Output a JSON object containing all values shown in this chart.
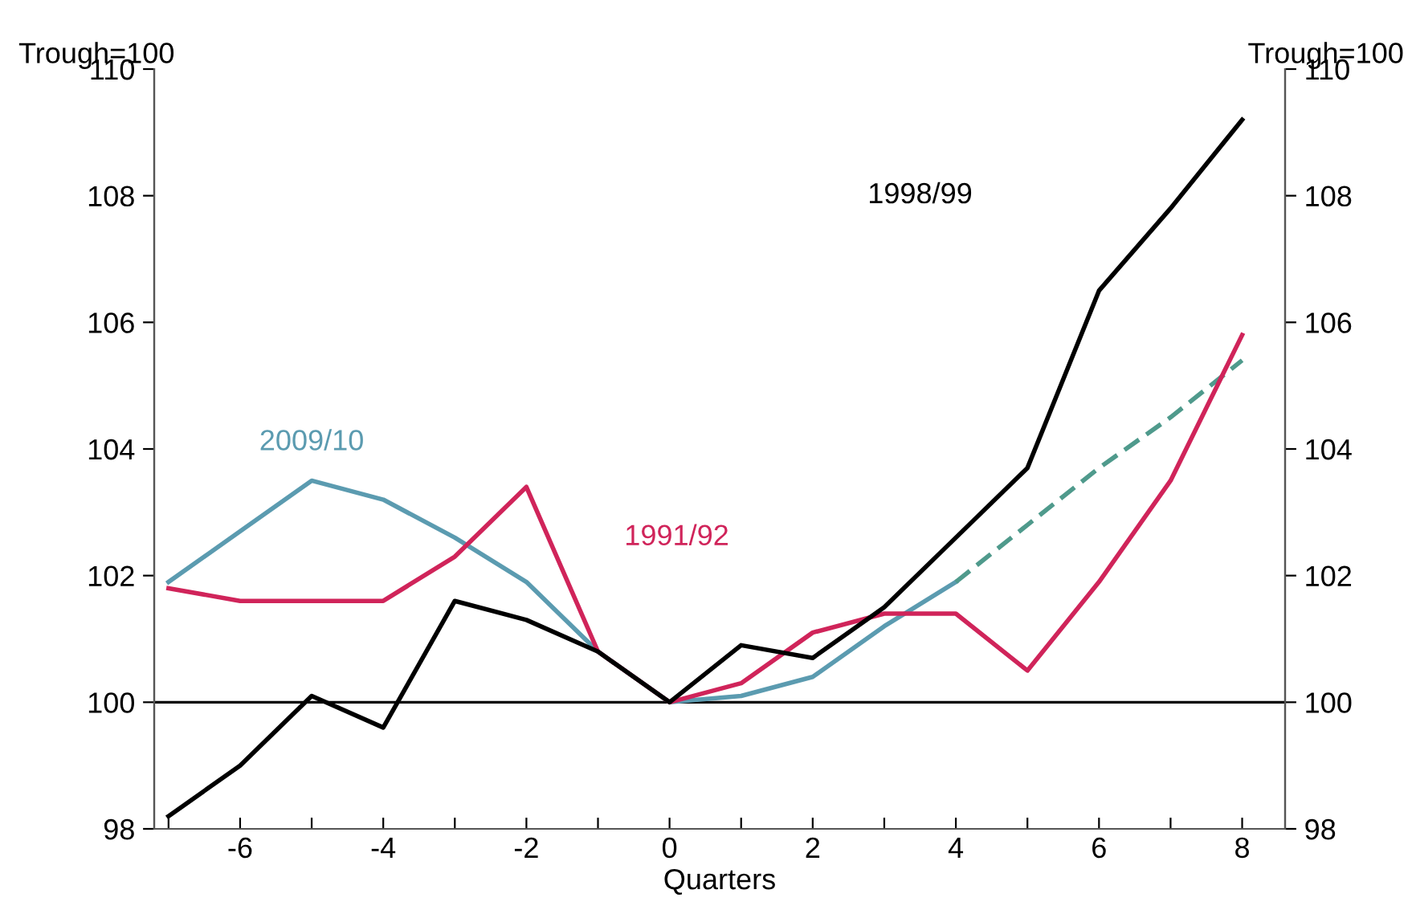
{
  "chart_data": {
    "type": "line",
    "xlabel": "Quarters",
    "ylabel": "Trough=100",
    "y2label": "Trough=100",
    "x": [
      -7,
      -6,
      -5,
      -4,
      -3,
      -2,
      -1,
      0,
      1,
      2,
      3,
      4,
      5,
      6,
      7,
      8
    ],
    "series": [
      {
        "name": "2009/10",
        "color": "#5b9bb0",
        "values": [
          101.9,
          102.7,
          103.5,
          103.2,
          102.6,
          101.9,
          100.8,
          100,
          100.1,
          100.4,
          101.2,
          101.9,
          null,
          null,
          null,
          null
        ]
      },
      {
        "color": "#4f9a8c",
        "line_style": "dashed",
        "values": [
          null,
          null,
          null,
          null,
          null,
          null,
          null,
          null,
          null,
          null,
          null,
          101.9,
          102.8,
          103.7,
          104.5,
          105.4
        ]
      },
      {
        "name": "1991/92",
        "color": "#d0245a",
        "values": [
          101.8,
          101.6,
          101.6,
          101.6,
          102.3,
          103.4,
          100.8,
          100,
          100.3,
          101.1,
          101.4,
          101.4,
          100.5,
          101.9,
          103.5,
          105.8
        ]
      },
      {
        "name": "1998/99",
        "color": "#000000",
        "values": [
          98.2,
          99.0,
          100.1,
          99.6,
          101.6,
          101.3,
          100.8,
          100,
          100.9,
          100.7,
          101.5,
          102.6,
          103.7,
          106.5,
          107.8,
          109.2
        ]
      }
    ],
    "xlim": [
      -7.2,
      8.6
    ],
    "xticks": [
      {
        "value": -7,
        "label": null
      },
      -6,
      {
        "value": -5,
        "label": null
      },
      -4,
      {
        "value": -3,
        "label": null
      },
      -2,
      {
        "value": -1,
        "label": null
      },
      0,
      {
        "value": 1,
        "label": null
      },
      2,
      {
        "value": 3,
        "label": null
      },
      4,
      {
        "value": 5,
        "label": null
      },
      6,
      {
        "value": 7,
        "label": null
      },
      8
    ],
    "ylim": [
      98,
      110
    ],
    "yticks": [
      98,
      100,
      102,
      104,
      106,
      108,
      110
    ],
    "y2lim": [
      98,
      110
    ],
    "y2ticks": [
      98,
      100,
      102,
      104,
      106,
      108,
      110
    ],
    "ref_lines": [
      {
        "axis": "y",
        "value": 100,
        "color": "#000000"
      }
    ],
    "grid": false,
    "legend": false,
    "marker": "none"
  }
}
